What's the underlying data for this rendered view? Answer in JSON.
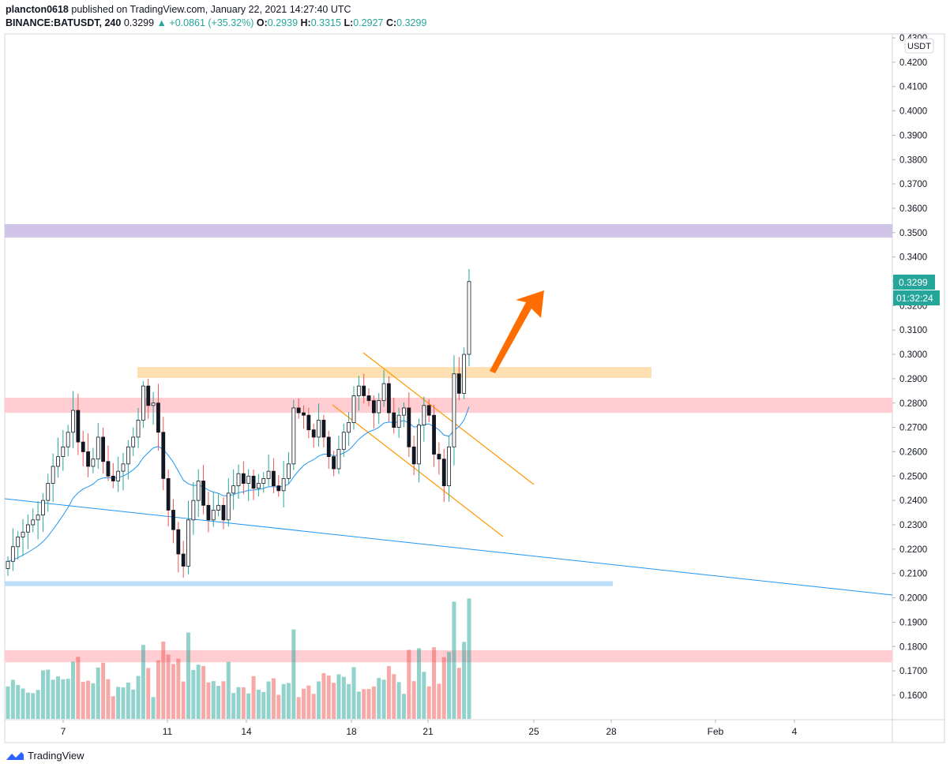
{
  "header": {
    "published_line_user": "plancton0618",
    "published_line_rest": "published on TradingView.com, January 22, 2021 14:27:40 UTC",
    "symbol": "BINANCE:BATUSDT, 240",
    "last": "0.3299",
    "change": "+0.0861 (+35.32%)",
    "o_label": "O:",
    "o_value": "0.2939",
    "h_label": "H:",
    "h_value": "0.3315",
    "l_label": "L:",
    "l_value": "0.2927",
    "c_label": "C:",
    "c_value": "0.3299"
  },
  "footer": {
    "brand": "TradingView",
    "logo_icon": "tradingview-logo-icon"
  },
  "chart_data": {
    "type": "candlestick",
    "currency_label": "USDT",
    "price_tag": "0.3299",
    "countdown_tag": "01:32:24",
    "y_axis_ticks": [
      "0.4300",
      "0.4200",
      "0.4100",
      "0.4000",
      "0.3900",
      "0.3800",
      "0.3700",
      "0.3600",
      "0.3500",
      "0.3400",
      "0.3300",
      "0.3200",
      "0.3100",
      "0.3000",
      "0.2900",
      "0.2800",
      "0.2700",
      "0.2600",
      "0.2500",
      "0.2400",
      "0.2300",
      "0.2200",
      "0.2100",
      "0.2000",
      "0.1900",
      "0.1800",
      "0.1700",
      "0.1600"
    ],
    "ylim": [
      0.155,
      0.431
    ],
    "x_axis_ticks": [
      "7",
      "11",
      "14",
      "18",
      "21",
      "25",
      "28",
      "Feb",
      "4"
    ],
    "colors": {
      "up": "#26a69a",
      "down": "#ef5350",
      "body": "#131722",
      "ema": "#2196f3",
      "trend": "#2196f3",
      "channel": "#ff9800",
      "arrow": "#ff6d00"
    },
    "zones": [
      {
        "name": "purple-resistance",
        "price_low": 0.348,
        "price_high": 0.3535,
        "color": "#d1c4e9"
      },
      {
        "name": "orange-zone",
        "price_low": 0.2903,
        "price_high": 0.2948,
        "color": "#ffe0b2"
      },
      {
        "name": "red-zone-upper",
        "price_low": 0.276,
        "price_high": 0.2822,
        "color": "#ffcdd2"
      },
      {
        "name": "blue-support",
        "price_low": 0.2048,
        "price_high": 0.2068,
        "color": "#bbdefb"
      },
      {
        "name": "red-zone-lower",
        "price_low": 0.1735,
        "price_high": 0.1785,
        "color": "#ffcdd2"
      }
    ],
    "candles_close": [
      0.215,
      0.221,
      0.225,
      0.227,
      0.23,
      0.232,
      0.234,
      0.24,
      0.247,
      0.254,
      0.258,
      0.262,
      0.268,
      0.277,
      0.264,
      0.26,
      0.254,
      0.257,
      0.266,
      0.256,
      0.25,
      0.248,
      0.252,
      0.255,
      0.262,
      0.266,
      0.273,
      0.287,
      0.279,
      0.28,
      0.268,
      0.249,
      0.236,
      0.228,
      0.218,
      0.213,
      0.232,
      0.24,
      0.248,
      0.238,
      0.232,
      0.236,
      0.238,
      0.232,
      0.243,
      0.246,
      0.251,
      0.247,
      0.25,
      0.245,
      0.247,
      0.249,
      0.252,
      0.246,
      0.244,
      0.249,
      0.255,
      0.278,
      0.276,
      0.275,
      0.269,
      0.266,
      0.273,
      0.266,
      0.258,
      0.253,
      0.261,
      0.268,
      0.272,
      0.283,
      0.287,
      0.283,
      0.281,
      0.276,
      0.281,
      0.288,
      0.276,
      0.27,
      0.275,
      0.278,
      0.262,
      0.255,
      0.271,
      0.279,
      0.275,
      0.259,
      0.257,
      0.246,
      0.262,
      0.292,
      0.284,
      0.3,
      0.3299
    ]
  }
}
